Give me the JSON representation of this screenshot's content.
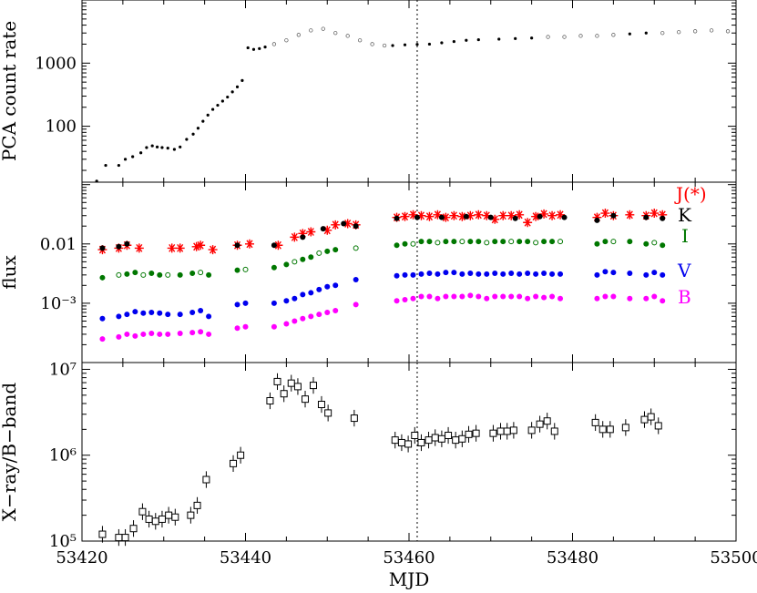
{
  "colors": {
    "J": "#ff0000",
    "K": "#000000",
    "I": "#007700",
    "V": "#0000ee",
    "B": "#ff00ff",
    "axes": "#000000"
  },
  "chart_data": [
    {
      "type": "scatter",
      "panel": "top",
      "ylabel": "PCA count rate",
      "yscale": "log",
      "ylim": [
        13,
        10000
      ],
      "yticks": [
        "100",
        "1000"
      ],
      "ytick_values": [
        100,
        1000
      ],
      "xlim": [
        53420,
        53500
      ],
      "vline_x": 53461,
      "series": [
        {
          "marker": "filled-dot",
          "x": [
            53421.8,
            53422.9,
            53424.5,
            53425.3,
            53426.2,
            53427.2,
            53427.9,
            53428.6,
            53429.2,
            53429.8,
            53430.5,
            53431.3,
            53432.0,
            53432.8,
            53433.6,
            53434.2,
            53434.8,
            53435.4,
            53436.0,
            53436.6,
            53437.2,
            53437.8,
            53438.4,
            53439.0,
            53439.6,
            53440.3,
            53441.0,
            53441.7,
            53442.4,
            53458.0,
            53459.5,
            53461.0,
            53462.5,
            53464.0,
            53465.5,
            53467.0,
            53468.5,
            53471.0,
            53473.0,
            53475.0,
            53487.0,
            53489.0
          ],
          "y": [
            13.5,
            24,
            24,
            30,
            33,
            38,
            46,
            49,
            47,
            46,
            45,
            43,
            47,
            62,
            75,
            93,
            120,
            150,
            185,
            215,
            250,
            290,
            350,
            420,
            530,
            1750,
            1650,
            1700,
            1800,
            1900,
            1950,
            1980,
            2000,
            2100,
            2200,
            2300,
            2350,
            2400,
            2450,
            2500,
            2900,
            3000
          ]
        },
        {
          "marker": "open-dot",
          "x": [
            53443.5,
            53445.0,
            53446.5,
            53448.0,
            53449.5,
            53451.0,
            53452.5,
            53454.0,
            53455.5,
            53457.0,
            53477.0,
            53479.0,
            53481.0,
            53483.0,
            53485.0,
            53491.0,
            53493.0,
            53495.0,
            53497.0,
            53499.0
          ],
          "y": [
            2000,
            2300,
            2800,
            3300,
            3500,
            3000,
            2700,
            2300,
            2000,
            1900,
            2600,
            2600,
            2700,
            2700,
            2800,
            3000,
            3100,
            3200,
            3300,
            3200
          ]
        }
      ]
    },
    {
      "type": "scatter",
      "panel": "middle",
      "ylabel": "flux",
      "yscale": "log",
      "ylim": [
        0.0001,
        0.11
      ],
      "yticks": [
        "10⁻³",
        "0.01"
      ],
      "ytick_values": [
        0.001,
        0.01
      ],
      "xlim": [
        53420,
        53500
      ],
      "vline_x": 53461,
      "series": [
        {
          "name": "J(*)",
          "marker": "star",
          "x": [
            53422.5,
            53424.5,
            53425.5,
            53427.0,
            53431.0,
            53432.0,
            53434.0,
            53434.5,
            53436.0,
            53439.0,
            53440.5,
            53444.0,
            53446.0,
            53447.0,
            53448.0,
            53450.0,
            53451.0,
            53452.5,
            53453.5,
            53458.5,
            53459.5,
            53460.5,
            53461.5,
            53462.5,
            53463.5,
            53464.5,
            53465.5,
            53466.5,
            53467.5,
            53468.5,
            53469.5,
            53470.5,
            53471.5,
            53472.5,
            53473.5,
            53474.5,
            53475.5,
            53476.5,
            53477.5,
            53478.5,
            53483.0,
            53484.0,
            53485.0,
            53487.0,
            53489.0,
            53490.0,
            53491.0
          ],
          "y": [
            0.008,
            0.0085,
            0.0095,
            0.0085,
            0.0085,
            0.0085,
            0.009,
            0.0095,
            0.008,
            0.0095,
            0.01,
            0.0095,
            0.013,
            0.015,
            0.016,
            0.017,
            0.021,
            0.022,
            0.021,
            0.028,
            0.029,
            0.031,
            0.03,
            0.029,
            0.031,
            0.028,
            0.03,
            0.029,
            0.03,
            0.031,
            0.03,
            0.026,
            0.03,
            0.03,
            0.031,
            0.023,
            0.029,
            0.032,
            0.03,
            0.031,
            0.028,
            0.033,
            0.03,
            0.031,
            0.03,
            0.033,
            0.031
          ]
        },
        {
          "name": "K",
          "marker": "filled-dot",
          "x": [
            53422.5,
            53424.5,
            53425.5,
            53439.0,
            53443.5,
            53447.0,
            53449.5,
            53452.0,
            53453.5,
            53458.5,
            53461.0,
            53464.0,
            53467.0,
            53470.0,
            53473.0,
            53476.0,
            53479.0,
            53483.0,
            53485.0,
            53489.0,
            53491.0
          ],
          "y": [
            0.0085,
            0.009,
            0.01,
            0.0095,
            0.0095,
            0.013,
            0.018,
            0.022,
            0.02,
            0.027,
            0.028,
            0.028,
            0.029,
            0.028,
            0.027,
            0.029,
            0.028,
            0.025,
            0.03,
            0.028,
            0.027
          ]
        },
        {
          "name": "I",
          "marker": "green-dot",
          "x": [
            53422.5,
            53424.5,
            53425.5,
            53426.5,
            53427.5,
            53428.5,
            53429.5,
            53430.5,
            53432.0,
            53433.5,
            53434.5,
            53435.5,
            53439.0,
            53440.0,
            53443.5,
            53445.0,
            53446.0,
            53447.0,
            53448.0,
            53449.0,
            53450.0,
            53451.0,
            53453.5,
            53458.5,
            53459.5,
            53460.5,
            53461.5,
            53462.5,
            53463.5,
            53464.5,
            53465.5,
            53466.5,
            53467.5,
            53468.5,
            53469.5,
            53470.5,
            53471.5,
            53472.5,
            53473.5,
            53474.5,
            53475.5,
            53476.5,
            53477.5,
            53478.5,
            53483.0,
            53484.0,
            53485.0,
            53487.0,
            53489.0,
            53490.0,
            53491.0
          ],
          "y": [
            0.0027,
            0.003,
            0.0031,
            0.0033,
            0.003,
            0.0032,
            0.003,
            0.003,
            0.003,
            0.0032,
            0.0033,
            0.003,
            0.0036,
            0.0037,
            0.004,
            0.0045,
            0.005,
            0.0055,
            0.006,
            0.007,
            0.0075,
            0.008,
            0.0085,
            0.0095,
            0.01,
            0.01,
            0.011,
            0.011,
            0.0105,
            0.011,
            0.011,
            0.011,
            0.011,
            0.011,
            0.0105,
            0.011,
            0.011,
            0.011,
            0.011,
            0.011,
            0.0105,
            0.011,
            0.011,
            0.011,
            0.01,
            0.011,
            0.011,
            0.011,
            0.01,
            0.0105,
            0.0095
          ]
        },
        {
          "name": "V",
          "marker": "filled-dot",
          "x": [
            53422.5,
            53424.5,
            53425.5,
            53426.5,
            53427.5,
            53428.5,
            53429.5,
            53430.5,
            53432.0,
            53433.5,
            53434.5,
            53435.5,
            53439.0,
            53440.0,
            53443.5,
            53445.0,
            53446.0,
            53447.0,
            53448.0,
            53449.0,
            53450.0,
            53451.0,
            53453.5,
            53458.5,
            53459.5,
            53460.5,
            53461.5,
            53462.5,
            53463.5,
            53464.5,
            53465.5,
            53466.5,
            53467.5,
            53468.5,
            53469.5,
            53470.5,
            53471.5,
            53472.5,
            53473.5,
            53474.5,
            53475.5,
            53476.5,
            53477.5,
            53478.5,
            53483.0,
            53484.0,
            53485.0,
            53487.0,
            53489.0,
            53490.0,
            53491.0
          ],
          "y": [
            0.00055,
            0.0006,
            0.00065,
            0.00072,
            0.00068,
            0.0007,
            0.00068,
            0.00065,
            0.00065,
            0.0007,
            0.00075,
            0.0006,
            0.00095,
            0.001,
            0.001,
            0.0011,
            0.0012,
            0.0014,
            0.0015,
            0.0017,
            0.0019,
            0.002,
            0.0025,
            0.0029,
            0.003,
            0.003,
            0.0031,
            0.0032,
            0.0031,
            0.0033,
            0.0033,
            0.0031,
            0.0032,
            0.0031,
            0.0031,
            0.0032,
            0.0031,
            0.0032,
            0.0031,
            0.0032,
            0.0031,
            0.0032,
            0.0031,
            0.0031,
            0.003,
            0.0034,
            0.0033,
            0.0032,
            0.003,
            0.0033,
            0.003
          ]
        },
        {
          "name": "B",
          "marker": "filled-dot",
          "x": [
            53422.5,
            53424.5,
            53425.5,
            53426.5,
            53427.5,
            53428.5,
            53429.5,
            53430.5,
            53432.0,
            53433.5,
            53434.5,
            53435.5,
            53439.0,
            53440.0,
            53443.5,
            53445.0,
            53446.0,
            53447.0,
            53448.0,
            53449.0,
            53450.0,
            53451.0,
            53453.5,
            53458.5,
            53459.5,
            53460.5,
            53461.5,
            53462.5,
            53463.5,
            53464.5,
            53465.5,
            53466.5,
            53467.5,
            53468.5,
            53469.5,
            53470.5,
            53471.5,
            53472.5,
            53473.5,
            53474.5,
            53475.5,
            53476.5,
            53477.5,
            53478.5,
            53483.0,
            53484.0,
            53485.0,
            53487.0,
            53489.0,
            53490.0,
            53491.0
          ],
          "y": [
            0.00025,
            0.00027,
            0.0003,
            0.00028,
            0.0003,
            0.00031,
            0.0003,
            0.0003,
            0.00031,
            0.00032,
            0.00033,
            0.0003,
            0.00038,
            0.0004,
            0.0004,
            0.00045,
            0.0005,
            0.00055,
            0.0006,
            0.00065,
            0.0007,
            0.00075,
            0.00095,
            0.0011,
            0.00115,
            0.0012,
            0.0013,
            0.0013,
            0.0012,
            0.0013,
            0.0013,
            0.0013,
            0.00135,
            0.0013,
            0.0012,
            0.0013,
            0.0013,
            0.0013,
            0.0013,
            0.0012,
            0.0013,
            0.00125,
            0.0013,
            0.0012,
            0.0012,
            0.0013,
            0.0013,
            0.0012,
            0.0012,
            0.0013,
            0.0011
          ]
        }
      ]
    },
    {
      "type": "scatter",
      "panel": "bottom",
      "ylabel": "X−ray/B−band",
      "xlabel": "MJD",
      "yscale": "log",
      "ylim": [
        100000,
        12000000
      ],
      "yticks": [
        "10⁵",
        "10⁶",
        "10⁷"
      ],
      "ytick_values": [
        100000,
        1000000,
        10000000
      ],
      "xlim": [
        53420,
        53500
      ],
      "xticks": [
        "53420",
        "53440",
        "53460",
        "53480",
        "53500"
      ],
      "xtick_values": [
        53420,
        53440,
        53460,
        53480,
        53500
      ],
      "vline_x": 53461,
      "series": [
        {
          "marker": "open-square-errorbar",
          "x": [
            53422.5,
            53424.5,
            53425.3,
            53426.3,
            53427.4,
            53428.2,
            53429.0,
            53429.8,
            53430.6,
            53431.4,
            53433.3,
            53434.1,
            53435.2,
            53438.5,
            53439.4,
            53443.0,
            53443.9,
            53444.7,
            53445.6,
            53446.4,
            53447.3,
            53448.3,
            53449.3,
            53450.1,
            53453.3,
            53458.3,
            53459.1,
            53459.9,
            53460.7,
            53461.5,
            53462.4,
            53463.2,
            53464.0,
            53464.8,
            53465.7,
            53466.5,
            53467.3,
            53468.2,
            53470.3,
            53471.2,
            53472.0,
            53472.8,
            53475.0,
            53476.0,
            53476.9,
            53477.8,
            53482.8,
            53483.7,
            53484.6,
            53486.5,
            53488.8,
            53489.6,
            53490.5
          ],
          "y": [
            120000,
            110000,
            110000,
            140000,
            220000,
            180000,
            170000,
            180000,
            200000,
            190000,
            200000,
            260000,
            520000,
            800000,
            1000000,
            4300000,
            7200000,
            5200000,
            6900000,
            6300000,
            4500000,
            6500000,
            3900000,
            3100000,
            2700000,
            1500000,
            1400000,
            1350000,
            1700000,
            1400000,
            1500000,
            1600000,
            1550000,
            1700000,
            1500000,
            1550000,
            1750000,
            1800000,
            1800000,
            1900000,
            1900000,
            1950000,
            1950000,
            2300000,
            2500000,
            1900000,
            2400000,
            2000000,
            2000000,
            2100000,
            2600000,
            2800000,
            2200000
          ]
        }
      ]
    }
  ]
}
